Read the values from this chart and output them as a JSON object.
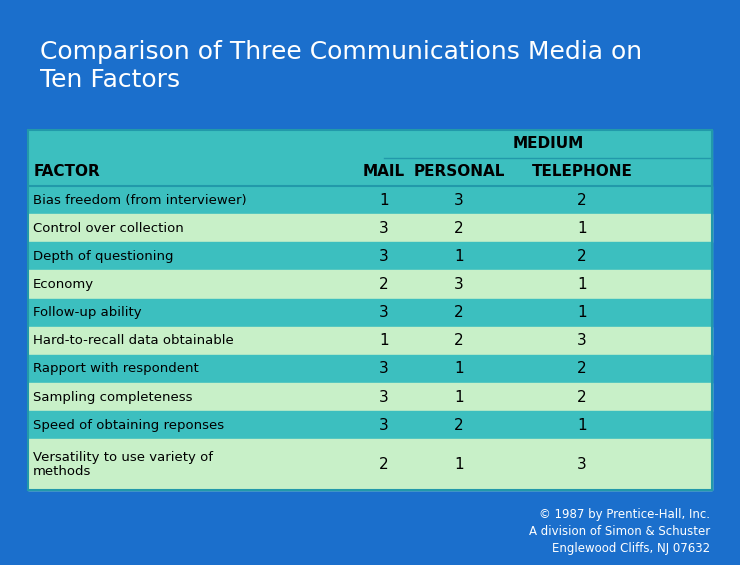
{
  "title": "Comparison of Three Communications Media on\nTen Factors",
  "title_color": "#FFFFFF",
  "title_fontsize": 18,
  "bg_color": "#1B6FCC",
  "table_bg_teal": "#3CBFBF",
  "table_bg_light": "#C8F0C8",
  "header_row_label": "FACTOR",
  "medium_label": "MEDIUM",
  "col_headers": [
    "MAIL",
    "PERSONAL",
    "TELEPHONE"
  ],
  "factors": [
    "Bias freedom (from interviewer)",
    "Control over collection",
    "Depth of questioning",
    "Economy",
    "Follow-up ability",
    "Hard-to-recall data obtainable",
    "Rapport with respondent",
    "Sampling completeness",
    "Speed of obtaining reponses",
    "Versatility to use variety of\nmethods"
  ],
  "values": [
    [
      1,
      3,
      2
    ],
    [
      3,
      2,
      1
    ],
    [
      3,
      1,
      2
    ],
    [
      2,
      3,
      1
    ],
    [
      3,
      2,
      1
    ],
    [
      1,
      2,
      3
    ],
    [
      3,
      1,
      2
    ],
    [
      3,
      1,
      2
    ],
    [
      3,
      2,
      1
    ],
    [
      2,
      1,
      3
    ]
  ],
  "copyright": "© 1987 by Prentice-Hall, Inc.\nA division of Simon & Schuster\nEnglewood Cliffs, NJ 07632",
  "copyright_color": "#FFFFFF",
  "copyright_fontsize": 8.5,
  "table_text_color": "#000000",
  "header_text_color": "#000000",
  "border_color": "#2299AA",
  "row_colors": [
    "#3CBFBF",
    "#C8F0C8"
  ]
}
